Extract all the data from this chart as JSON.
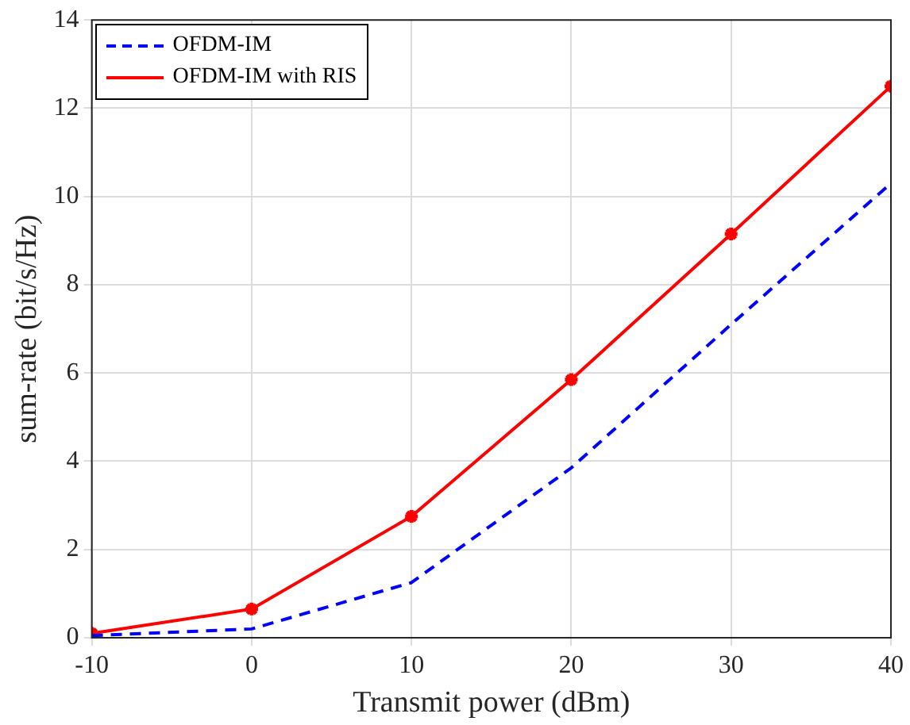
{
  "chart_data": {
    "type": "line",
    "xlabel": "Transmit power (dBm)",
    "ylabel": "sum-rate (bit/s/Hz)",
    "x": [
      -10,
      0,
      10,
      20,
      30,
      40
    ],
    "series": [
      {
        "name": "OFDM-IM",
        "color": "#0000ff",
        "values": [
          0.05,
          0.2,
          1.25,
          3.85,
          7.1,
          10.3
        ],
        "marker": "none",
        "line_style": "dashed"
      },
      {
        "name": "OFDM-IM with RIS",
        "color": "#ff0000",
        "values": [
          0.1,
          0.65,
          2.75,
          5.85,
          9.15,
          12.5
        ],
        "marker": "cross",
        "line_style": "solid"
      }
    ],
    "xlim": [
      -10,
      40
    ],
    "xticks": [
      -10,
      0,
      10,
      20,
      30,
      40
    ],
    "ylim": [
      0,
      14
    ],
    "yticks": [
      0,
      2,
      4,
      6,
      8,
      10,
      12,
      14
    ],
    "grid": true,
    "legend": "top left"
  }
}
